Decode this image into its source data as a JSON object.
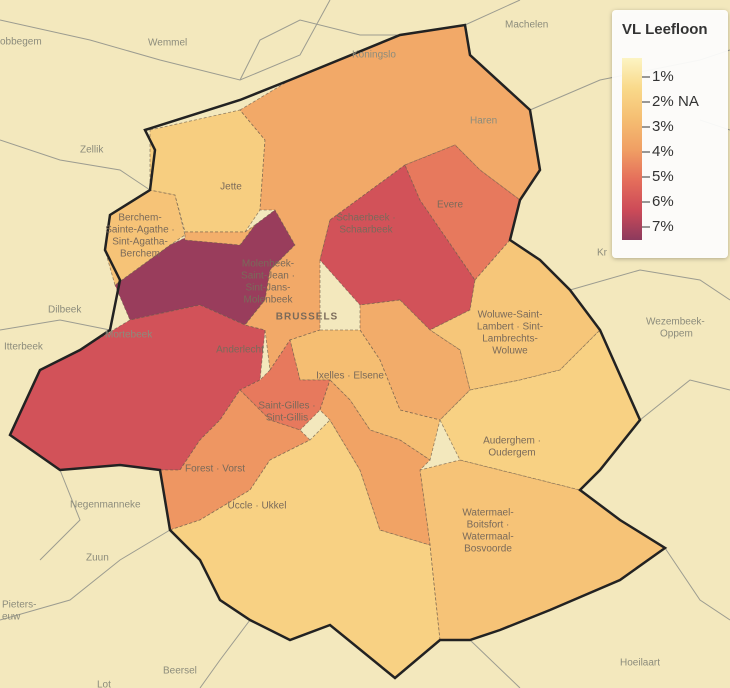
{
  "map": {
    "legend": {
      "title": "VL Leefloon",
      "ticks": [
        {
          "value": 1,
          "label": "1%"
        },
        {
          "value": 2,
          "label": "2%"
        },
        {
          "value": 3,
          "label": "3%"
        },
        {
          "value": 4,
          "label": "4%"
        },
        {
          "value": 5,
          "label": "5%"
        },
        {
          "value": 6,
          "label": "6%"
        },
        {
          "value": 7,
          "label": "7%"
        }
      ],
      "colors": [
        "#fcf4c3",
        "#f9d98a",
        "#f5be72",
        "#f0a064",
        "#e56f5b",
        "#cd4b58",
        "#8c3a5d"
      ],
      "na": "NA"
    },
    "regions": [
      {
        "label": [
          "Molenbeek-",
          "Saint-Jean ·",
          "Sint-Jans-",
          "Molenbeek"
        ],
        "value": 6.8
      },
      {
        "label": [
          "Anderlecht"
        ],
        "value": 5.8
      },
      {
        "label": [
          "Berchem-",
          "Sainte-Agathe ·",
          "Sint-Agatha-",
          "Berchem"
        ],
        "value": 2.8
      },
      {
        "label": [
          "Jette"
        ],
        "value": 2.4
      },
      {
        "value": 3.5
      },
      {
        "label": [
          "BRUSSELS"
        ],
        "value": 3.7
      },
      {
        "label": [
          "Schaerbeek ·",
          "Schaarbeek"
        ],
        "value": 5.8
      },
      {
        "label": [
          "Evere"
        ],
        "value": 4.8
      },
      {
        "label": [
          "Woluwe-Saint-",
          "Lambert · Sint-",
          "Lambrechts-",
          "Woluwe"
        ],
        "value": 2.7
      },
      {
        "value": 3.6
      },
      {
        "label": [
          "Ixelles · Elsene"
        ],
        "value": 3.0
      },
      {
        "label": [
          "Saint-Gilles ·",
          "Sint-Gillis"
        ],
        "value": 4.8
      },
      {
        "label": [
          "Forest · Vorst"
        ],
        "value": 4.2
      },
      {
        "label": [
          "Uccle · Ukkel"
        ],
        "value": 2.3
      },
      {
        "label": [
          "Watermael-",
          "Boitsfort ·",
          "Watermaal-",
          "Bosvoorde"
        ],
        "value": 2.8
      },
      {
        "label": [
          "Auderghem ·",
          "Oudergem"
        ],
        "value": 2.3
      },
      {
        "value": 3.9
      }
    ],
    "places": [
      "Wemmel",
      "Machelen",
      "Koningslo",
      "Zellik",
      "Dilbeek",
      "Itterbeek",
      "Mortebeek",
      "Negenmanneke",
      "Zuun",
      "Pieters-",
      "euw",
      "Beersel",
      "Lot",
      "Hoeilaart",
      "Wezembeek-",
      "Oppem",
      "obbegem",
      "Kr",
      "Haren"
    ]
  }
}
